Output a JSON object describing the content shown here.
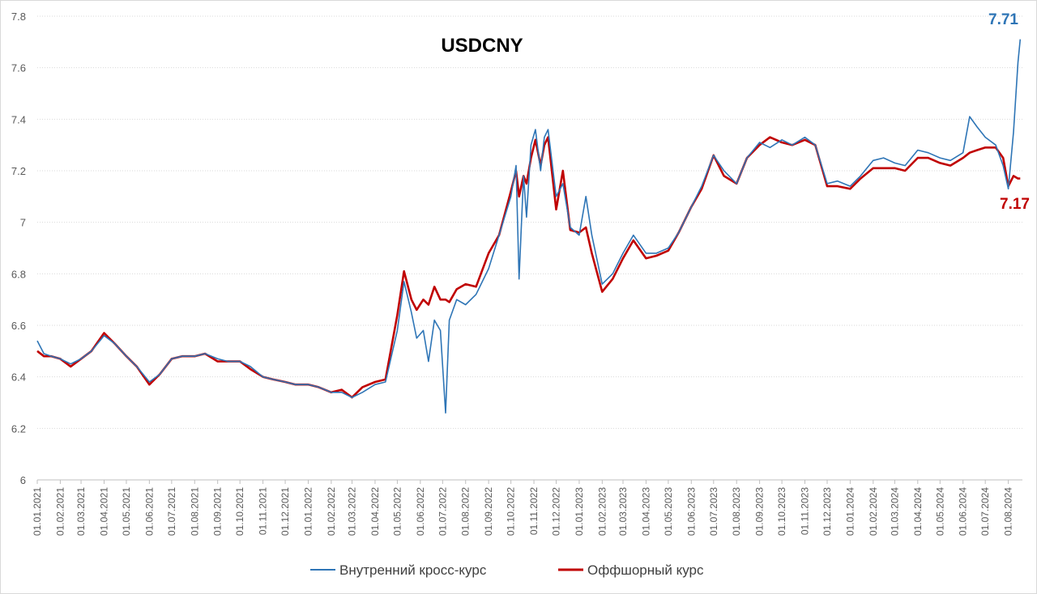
{
  "chart_data": {
    "type": "line",
    "title": "USDCNY",
    "xlabel": "",
    "ylabel": "",
    "ylim": [
      6,
      7.8
    ],
    "yticks": [
      6,
      6.2,
      6.4,
      6.6,
      6.8,
      7,
      7.2,
      7.4,
      7.6,
      7.8
    ],
    "ytick_labels": [
      "6",
      "6.2",
      "6.4",
      "6.6",
      "6.8",
      "7",
      "7.2",
      "7.4",
      "7.6",
      "7.8"
    ],
    "xtick_labels": [
      "01.01.2021",
      "01.02.2021",
      "01.03.2021",
      "01.04.2021",
      "01.05.2021",
      "01.06.2021",
      "01.07.2021",
      "01.08.2021",
      "01.09.2021",
      "01.10.2021",
      "01.11.2021",
      "01.12.2021",
      "01.01.2022",
      "01.02.2022",
      "01.03.2022",
      "01.04.2022",
      "01.05.2022",
      "01.06.2022",
      "01.07.2022",
      "01.08.2022",
      "01.09.2022",
      "01.10.2022",
      "01.11.2022",
      "01.12.2022",
      "01.01.2023",
      "01.02.2023",
      "01.03.2023",
      "01.04.2023",
      "01.05.2023",
      "01.06.2023",
      "01.07.2023",
      "01.08.2023",
      "01.09.2023",
      "01.10.2023",
      "01.11.2023",
      "01.12.2023",
      "01.01.2024",
      "01.02.2024",
      "01.03.2024",
      "01.04.2024",
      "01.05.2024",
      "01.06.2024",
      "01.07.2024",
      "01.08.2024"
    ],
    "xlim": [
      "2021-01-01",
      "2024-08-20"
    ],
    "grid": true,
    "legend_position": "bottom",
    "series": [
      {
        "name": "Внутренний кросс-курс",
        "color": "#2E75B6",
        "end_label": "7.71",
        "points": [
          [
            "2021-01-01",
            6.54
          ],
          [
            "2021-01-10",
            6.49
          ],
          [
            "2021-01-20",
            6.48
          ],
          [
            "2021-02-01",
            6.47
          ],
          [
            "2021-02-15",
            6.45
          ],
          [
            "2021-03-01",
            6.47
          ],
          [
            "2021-03-15",
            6.5
          ],
          [
            "2021-04-01",
            6.56
          ],
          [
            "2021-04-15",
            6.53
          ],
          [
            "2021-05-01",
            6.48
          ],
          [
            "2021-05-15",
            6.44
          ],
          [
            "2021-06-01",
            6.38
          ],
          [
            "2021-06-15",
            6.41
          ],
          [
            "2021-07-01",
            6.47
          ],
          [
            "2021-07-15",
            6.48
          ],
          [
            "2021-08-01",
            6.48
          ],
          [
            "2021-08-15",
            6.49
          ],
          [
            "2021-09-01",
            6.47
          ],
          [
            "2021-09-15",
            6.46
          ],
          [
            "2021-10-01",
            6.46
          ],
          [
            "2021-10-15",
            6.44
          ],
          [
            "2021-11-01",
            6.4
          ],
          [
            "2021-11-15",
            6.39
          ],
          [
            "2021-12-01",
            6.38
          ],
          [
            "2021-12-15",
            6.37
          ],
          [
            "2022-01-01",
            6.37
          ],
          [
            "2022-01-15",
            6.36
          ],
          [
            "2022-02-01",
            6.34
          ],
          [
            "2022-02-15",
            6.34
          ],
          [
            "2022-03-01",
            6.32
          ],
          [
            "2022-03-15",
            6.34
          ],
          [
            "2022-04-01",
            6.37
          ],
          [
            "2022-04-15",
            6.38
          ],
          [
            "2022-05-01",
            6.58
          ],
          [
            "2022-05-10",
            6.77
          ],
          [
            "2022-05-20",
            6.65
          ],
          [
            "2022-05-27",
            6.55
          ],
          [
            "2022-06-05",
            6.58
          ],
          [
            "2022-06-12",
            6.46
          ],
          [
            "2022-06-20",
            6.62
          ],
          [
            "2022-06-28",
            6.58
          ],
          [
            "2022-07-05",
            6.26
          ],
          [
            "2022-07-10",
            6.62
          ],
          [
            "2022-07-20",
            6.7
          ],
          [
            "2022-08-01",
            6.68
          ],
          [
            "2022-08-15",
            6.72
          ],
          [
            "2022-09-01",
            6.82
          ],
          [
            "2022-09-15",
            6.95
          ],
          [
            "2022-10-01",
            7.1
          ],
          [
            "2022-10-08",
            7.22
          ],
          [
            "2022-10-12",
            6.78
          ],
          [
            "2022-10-18",
            7.18
          ],
          [
            "2022-10-22",
            7.02
          ],
          [
            "2022-10-28",
            7.3
          ],
          [
            "2022-11-03",
            7.36
          ],
          [
            "2022-11-10",
            7.2
          ],
          [
            "2022-11-15",
            7.33
          ],
          [
            "2022-11-20",
            7.36
          ],
          [
            "2022-12-01",
            7.1
          ],
          [
            "2022-12-10",
            7.15
          ],
          [
            "2022-12-20",
            6.98
          ],
          [
            "2023-01-01",
            6.95
          ],
          [
            "2023-01-10",
            7.1
          ],
          [
            "2023-01-18",
            6.95
          ],
          [
            "2023-02-01",
            6.76
          ],
          [
            "2023-02-15",
            6.8
          ],
          [
            "2023-03-01",
            6.88
          ],
          [
            "2023-03-15",
            6.95
          ],
          [
            "2023-04-01",
            6.88
          ],
          [
            "2023-04-15",
            6.88
          ],
          [
            "2023-05-01",
            6.9
          ],
          [
            "2023-05-15",
            6.96
          ],
          [
            "2023-06-01",
            7.06
          ],
          [
            "2023-06-15",
            7.14
          ],
          [
            "2023-07-01",
            7.26
          ],
          [
            "2023-07-15",
            7.2
          ],
          [
            "2023-08-01",
            7.15
          ],
          [
            "2023-08-15",
            7.25
          ],
          [
            "2023-09-01",
            7.31
          ],
          [
            "2023-09-15",
            7.29
          ],
          [
            "2023-10-01",
            7.32
          ],
          [
            "2023-10-15",
            7.3
          ],
          [
            "2023-11-01",
            7.33
          ],
          [
            "2023-11-15",
            7.3
          ],
          [
            "2023-12-01",
            7.15
          ],
          [
            "2023-12-15",
            7.16
          ],
          [
            "2024-01-01",
            7.14
          ],
          [
            "2024-01-15",
            7.18
          ],
          [
            "2024-02-01",
            7.24
          ],
          [
            "2024-02-15",
            7.25
          ],
          [
            "2024-03-01",
            7.23
          ],
          [
            "2024-03-15",
            7.22
          ],
          [
            "2024-04-01",
            7.28
          ],
          [
            "2024-04-15",
            7.27
          ],
          [
            "2024-05-01",
            7.25
          ],
          [
            "2024-05-15",
            7.24
          ],
          [
            "2024-06-01",
            7.27
          ],
          [
            "2024-06-10",
            7.41
          ],
          [
            "2024-06-20",
            7.37
          ],
          [
            "2024-07-01",
            7.33
          ],
          [
            "2024-07-15",
            7.3
          ],
          [
            "2024-07-25",
            7.22
          ],
          [
            "2024-08-01",
            7.13
          ],
          [
            "2024-08-08",
            7.35
          ],
          [
            "2024-08-14",
            7.62
          ],
          [
            "2024-08-17",
            7.71
          ]
        ]
      },
      {
        "name": "Оффшорный курс",
        "color": "#C00000",
        "end_label": "7.17",
        "points": [
          [
            "2021-01-01",
            6.5
          ],
          [
            "2021-01-10",
            6.48
          ],
          [
            "2021-01-20",
            6.48
          ],
          [
            "2021-02-01",
            6.47
          ],
          [
            "2021-02-15",
            6.44
          ],
          [
            "2021-03-01",
            6.47
          ],
          [
            "2021-03-15",
            6.5
          ],
          [
            "2021-04-01",
            6.57
          ],
          [
            "2021-04-15",
            6.53
          ],
          [
            "2021-05-01",
            6.48
          ],
          [
            "2021-05-15",
            6.44
          ],
          [
            "2021-06-01",
            6.37
          ],
          [
            "2021-06-15",
            6.41
          ],
          [
            "2021-07-01",
            6.47
          ],
          [
            "2021-07-15",
            6.48
          ],
          [
            "2021-08-01",
            6.48
          ],
          [
            "2021-08-15",
            6.49
          ],
          [
            "2021-09-01",
            6.46
          ],
          [
            "2021-09-15",
            6.46
          ],
          [
            "2021-10-01",
            6.46
          ],
          [
            "2021-10-15",
            6.43
          ],
          [
            "2021-11-01",
            6.4
          ],
          [
            "2021-11-15",
            6.39
          ],
          [
            "2021-12-01",
            6.38
          ],
          [
            "2021-12-15",
            6.37
          ],
          [
            "2022-01-01",
            6.37
          ],
          [
            "2022-01-15",
            6.36
          ],
          [
            "2022-02-01",
            6.34
          ],
          [
            "2022-02-15",
            6.35
          ],
          [
            "2022-03-01",
            6.32
          ],
          [
            "2022-03-15",
            6.36
          ],
          [
            "2022-04-01",
            6.38
          ],
          [
            "2022-04-15",
            6.39
          ],
          [
            "2022-05-01",
            6.64
          ],
          [
            "2022-05-10",
            6.81
          ],
          [
            "2022-05-20",
            6.7
          ],
          [
            "2022-05-27",
            6.66
          ],
          [
            "2022-06-05",
            6.7
          ],
          [
            "2022-06-12",
            6.68
          ],
          [
            "2022-06-20",
            6.75
          ],
          [
            "2022-06-28",
            6.7
          ],
          [
            "2022-07-05",
            6.7
          ],
          [
            "2022-07-10",
            6.69
          ],
          [
            "2022-07-20",
            6.74
          ],
          [
            "2022-08-01",
            6.76
          ],
          [
            "2022-08-15",
            6.75
          ],
          [
            "2022-09-01",
            6.88
          ],
          [
            "2022-09-15",
            6.95
          ],
          [
            "2022-10-01",
            7.12
          ],
          [
            "2022-10-08",
            7.2
          ],
          [
            "2022-10-12",
            7.1
          ],
          [
            "2022-10-18",
            7.18
          ],
          [
            "2022-10-22",
            7.15
          ],
          [
            "2022-10-28",
            7.25
          ],
          [
            "2022-11-03",
            7.32
          ],
          [
            "2022-11-10",
            7.22
          ],
          [
            "2022-11-15",
            7.3
          ],
          [
            "2022-11-20",
            7.33
          ],
          [
            "2022-12-01",
            7.05
          ],
          [
            "2022-12-10",
            7.2
          ],
          [
            "2022-12-20",
            6.97
          ],
          [
            "2023-01-01",
            6.96
          ],
          [
            "2023-01-10",
            6.98
          ],
          [
            "2023-01-18",
            6.88
          ],
          [
            "2023-02-01",
            6.73
          ],
          [
            "2023-02-15",
            6.78
          ],
          [
            "2023-03-01",
            6.86
          ],
          [
            "2023-03-15",
            6.93
          ],
          [
            "2023-04-01",
            6.86
          ],
          [
            "2023-04-15",
            6.87
          ],
          [
            "2023-05-01",
            6.89
          ],
          [
            "2023-05-15",
            6.96
          ],
          [
            "2023-06-01",
            7.06
          ],
          [
            "2023-06-15",
            7.13
          ],
          [
            "2023-07-01",
            7.26
          ],
          [
            "2023-07-15",
            7.18
          ],
          [
            "2023-08-01",
            7.15
          ],
          [
            "2023-08-15",
            7.25
          ],
          [
            "2023-09-01",
            7.3
          ],
          [
            "2023-09-15",
            7.33
          ],
          [
            "2023-10-01",
            7.31
          ],
          [
            "2023-10-15",
            7.3
          ],
          [
            "2023-11-01",
            7.32
          ],
          [
            "2023-11-15",
            7.3
          ],
          [
            "2023-12-01",
            7.14
          ],
          [
            "2023-12-15",
            7.14
          ],
          [
            "2024-01-01",
            7.13
          ],
          [
            "2024-01-15",
            7.17
          ],
          [
            "2024-02-01",
            7.21
          ],
          [
            "2024-02-15",
            7.21
          ],
          [
            "2024-03-01",
            7.21
          ],
          [
            "2024-03-15",
            7.2
          ],
          [
            "2024-04-01",
            7.25
          ],
          [
            "2024-04-15",
            7.25
          ],
          [
            "2024-05-01",
            7.23
          ],
          [
            "2024-05-15",
            7.22
          ],
          [
            "2024-06-01",
            7.25
          ],
          [
            "2024-06-10",
            7.27
          ],
          [
            "2024-06-20",
            7.28
          ],
          [
            "2024-07-01",
            7.29
          ],
          [
            "2024-07-15",
            7.29
          ],
          [
            "2024-07-25",
            7.25
          ],
          [
            "2024-08-01",
            7.14
          ],
          [
            "2024-08-08",
            7.18
          ],
          [
            "2024-08-14",
            7.17
          ],
          [
            "2024-08-17",
            7.17
          ]
        ]
      }
    ]
  }
}
